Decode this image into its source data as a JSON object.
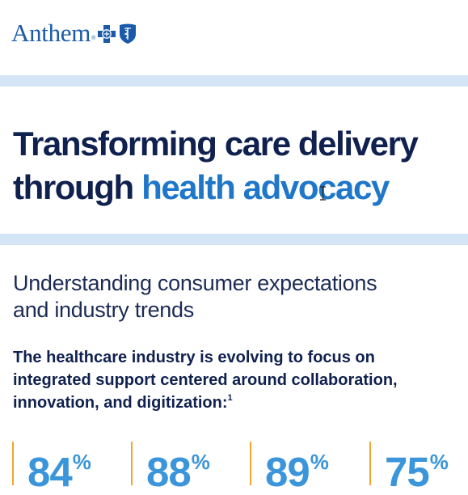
{
  "brand": {
    "name": "Anthem",
    "trademark": "®",
    "primary_color": "#1a5aa8",
    "icons": [
      "blue-cross-icon",
      "blue-shield-icon"
    ]
  },
  "colors": {
    "navy": "#10214f",
    "accent_blue": "#1f77c9",
    "stat_blue": "#3b95da",
    "divider_orange": "#f2a62e",
    "band_light_blue": "#d4e5f5"
  },
  "headline": {
    "line1": "Transforming care delivery",
    "line2_plain": "through",
    "line2_accent": "health advocacy"
  },
  "subhead": {
    "line1": "Understanding consumer expectations",
    "line2": "and industry trends"
  },
  "intro": {
    "line1": "The healthcare industry is evolving to focus on",
    "line2": "integrated support centered around collaboration,",
    "line3": "innovation, and digitization:",
    "footnote": "1"
  },
  "stats": [
    {
      "value": "84",
      "unit": "%"
    },
    {
      "value": "88",
      "unit": "%"
    },
    {
      "value": "89",
      "unit": "%"
    },
    {
      "value": "75",
      "unit": "%"
    }
  ]
}
